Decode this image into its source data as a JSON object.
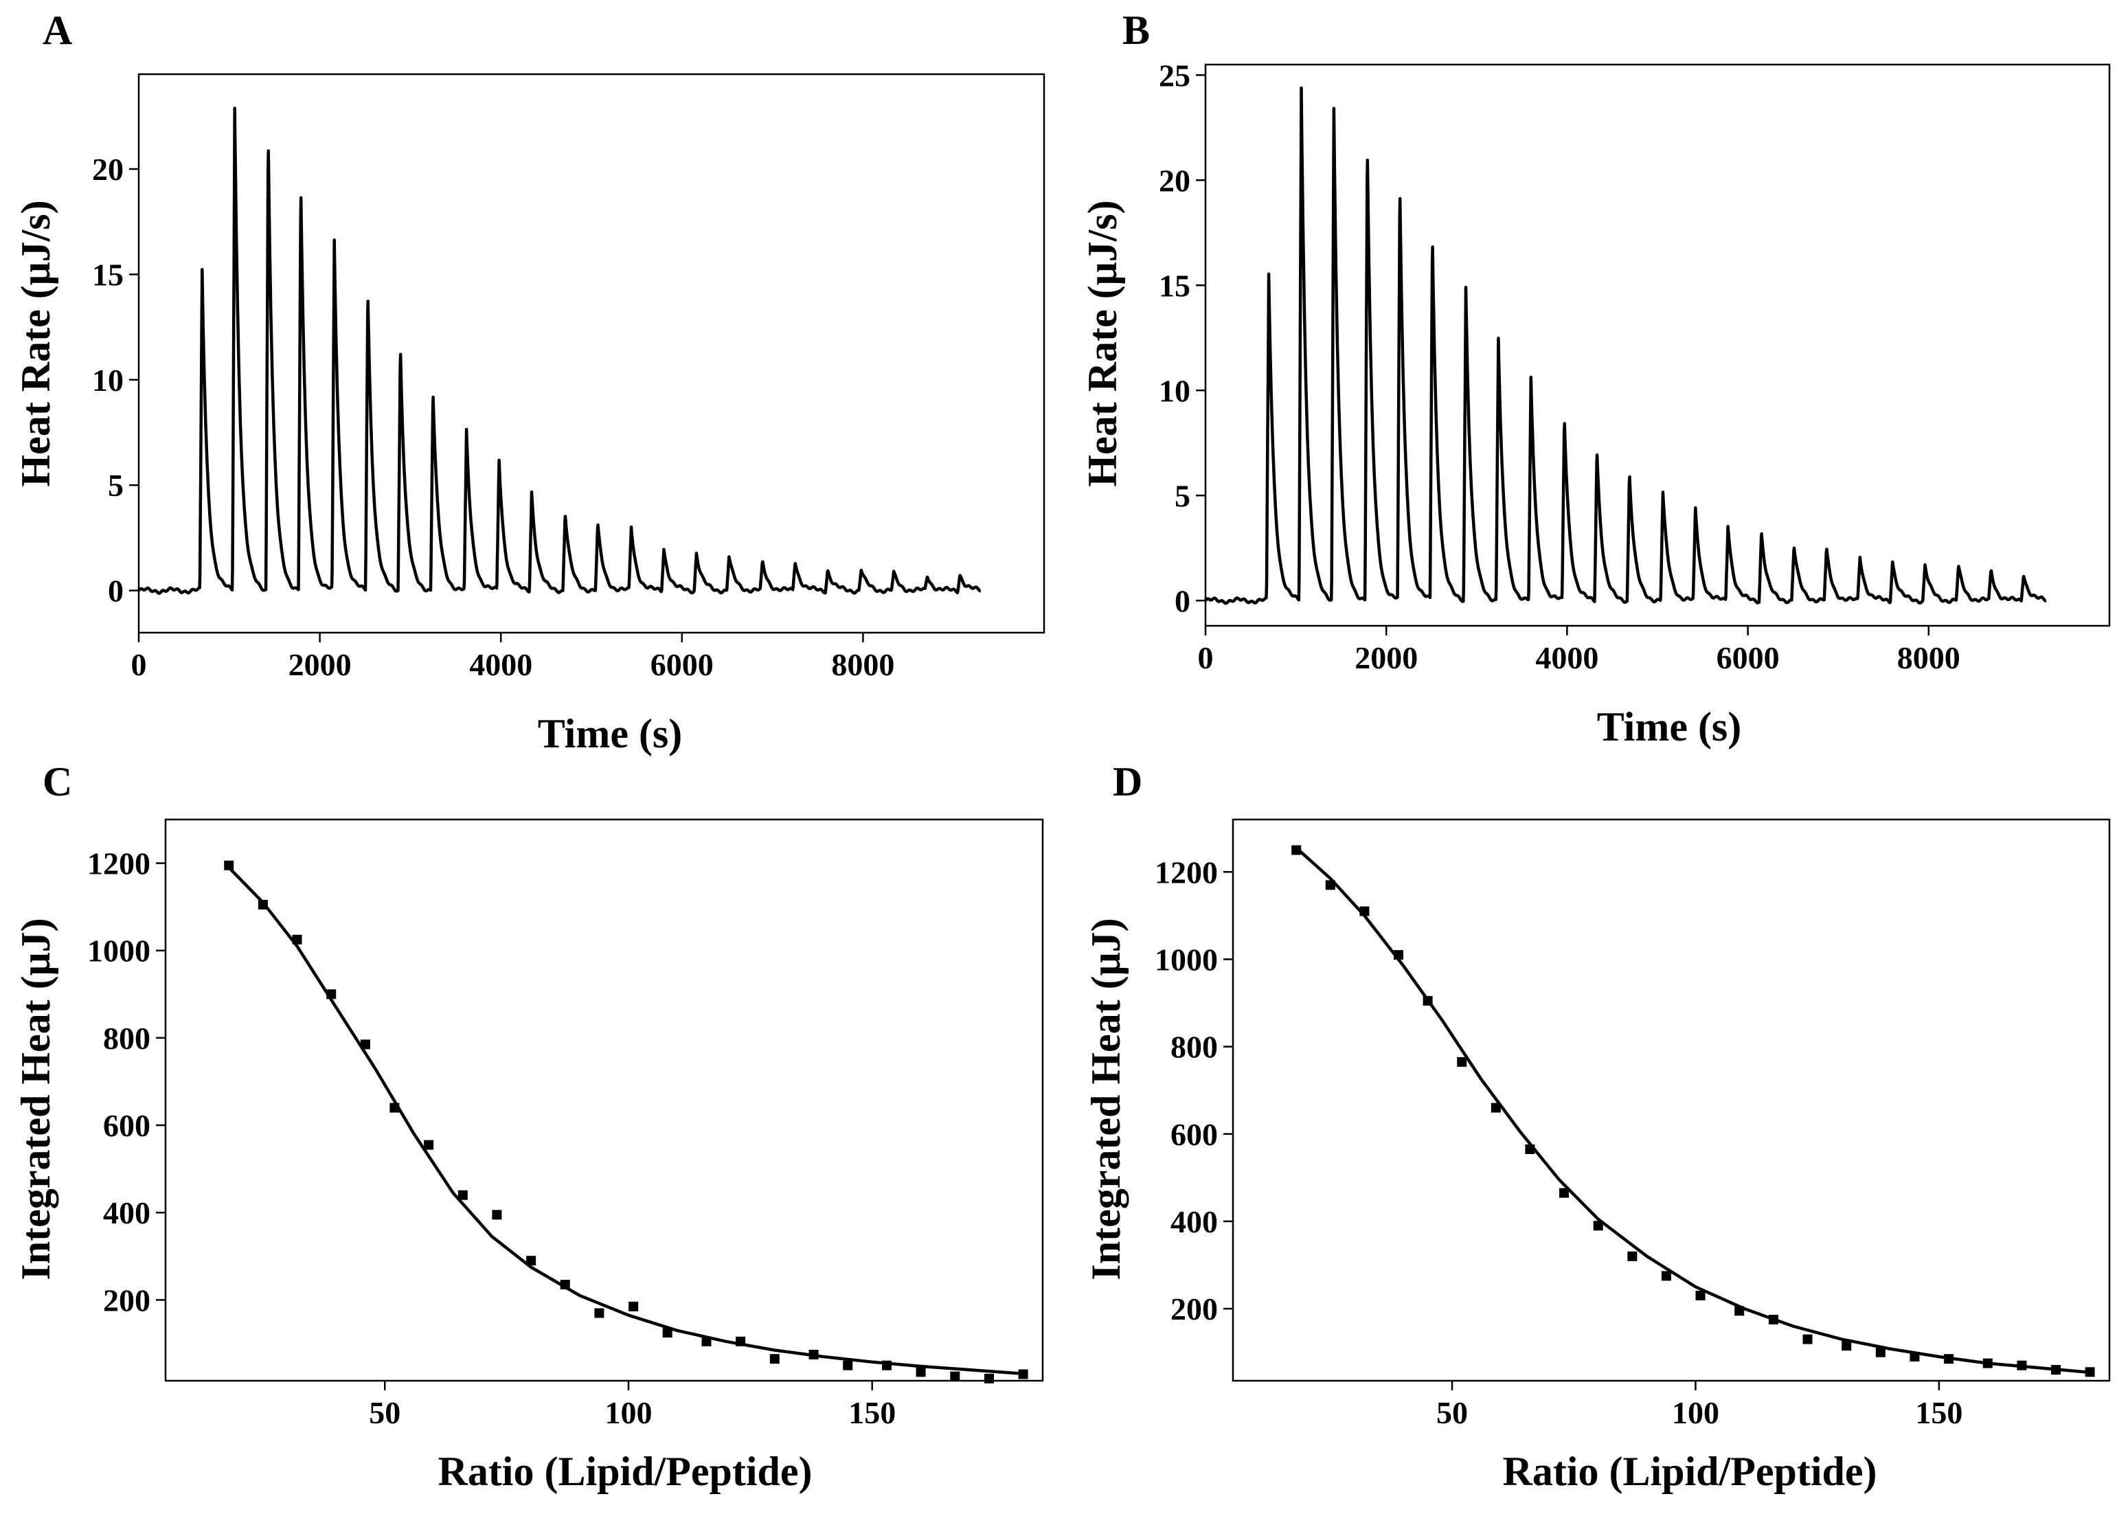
{
  "chart_data": [
    {
      "panel": "A",
      "type": "line",
      "xlabel": "Time (s)",
      "ylabel": "Heat Rate (μJ/s)",
      "xlim": [
        0,
        10000
      ],
      "ylim": [
        -2,
        24.5
      ],
      "xticks": [
        0,
        2000,
        4000,
        6000,
        8000
      ],
      "yticks": [
        0,
        5,
        10,
        15,
        20
      ],
      "baseline_end_s": 9300,
      "injections": [
        {
          "t": 700,
          "peak": 15.2
        },
        {
          "t": 1060,
          "peak": 22.9
        },
        {
          "t": 1430,
          "peak": 21.6
        },
        {
          "t": 1790,
          "peak": 19.2
        },
        {
          "t": 2160,
          "peak": 16.5
        },
        {
          "t": 2530,
          "peak": 14.2
        },
        {
          "t": 2890,
          "peak": 11.6
        },
        {
          "t": 3250,
          "peak": 9.5
        },
        {
          "t": 3620,
          "peak": 7.5
        },
        {
          "t": 3980,
          "peak": 6.2
        },
        {
          "t": 4340,
          "peak": 4.7
        },
        {
          "t": 4710,
          "peak": 3.7
        },
        {
          "t": 5070,
          "peak": 3.1
        },
        {
          "t": 5440,
          "peak": 3.0
        },
        {
          "t": 5800,
          "peak": 2.0
        },
        {
          "t": 6160,
          "peak": 1.8
        },
        {
          "t": 6520,
          "peak": 1.6
        },
        {
          "t": 6890,
          "peak": 1.3
        },
        {
          "t": 7250,
          "peak": 1.4
        },
        {
          "t": 7610,
          "peak": 1.0
        },
        {
          "t": 7980,
          "peak": 1.0
        },
        {
          "t": 8340,
          "peak": 0.8
        },
        {
          "t": 8710,
          "peak": 0.7
        },
        {
          "t": 9070,
          "peak": 0.8
        }
      ]
    },
    {
      "panel": "B",
      "type": "line",
      "xlabel": "Time (s)",
      "ylabel": "Heat Rate (μJ/s)",
      "xlim": [
        0,
        10000
      ],
      "ylim": [
        -1.2,
        25.5
      ],
      "xticks": [
        0,
        2000,
        4000,
        6000,
        8000
      ],
      "yticks": [
        0,
        5,
        10,
        15,
        20,
        25
      ],
      "baseline_end_s": 9300,
      "injections": [
        {
          "t": 700,
          "peak": 15.5
        },
        {
          "t": 1060,
          "peak": 24.4
        },
        {
          "t": 1420,
          "peak": 23.4
        },
        {
          "t": 1790,
          "peak": 21.6
        },
        {
          "t": 2150,
          "peak": 19.6
        },
        {
          "t": 2510,
          "peak": 17.4
        },
        {
          "t": 2880,
          "peak": 14.9
        },
        {
          "t": 3240,
          "peak": 12.5
        },
        {
          "t": 3600,
          "peak": 10.5
        },
        {
          "t": 3970,
          "peak": 8.7
        },
        {
          "t": 4330,
          "peak": 7.2
        },
        {
          "t": 4690,
          "peak": 6.1
        },
        {
          "t": 5060,
          "peak": 5.1
        },
        {
          "t": 5420,
          "peak": 4.3
        },
        {
          "t": 5780,
          "peak": 3.6
        },
        {
          "t": 6150,
          "peak": 3.3
        },
        {
          "t": 6510,
          "peak": 2.6
        },
        {
          "t": 6870,
          "peak": 2.4
        },
        {
          "t": 7240,
          "peak": 2.1
        },
        {
          "t": 7600,
          "peak": 1.9
        },
        {
          "t": 7960,
          "peak": 1.7
        },
        {
          "t": 8330,
          "peak": 1.6
        },
        {
          "t": 8690,
          "peak": 1.4
        },
        {
          "t": 9050,
          "peak": 1.3
        }
      ]
    },
    {
      "panel": "C",
      "type": "scatter",
      "xlabel": "Ratio (Lipid/Peptide)",
      "ylabel": "Integrated Heat (μJ)",
      "xlim": [
        5,
        185
      ],
      "ylim": [
        15,
        1300
      ],
      "xticks": [
        50,
        100,
        150
      ],
      "yticks": [
        200,
        400,
        600,
        800,
        1000,
        1200
      ],
      "points": {
        "x": [
          18,
          25,
          32,
          39,
          46,
          52,
          59,
          66,
          73,
          80,
          87,
          94,
          101,
          108,
          116,
          123,
          130,
          138,
          145,
          153,
          160,
          167,
          174,
          181
        ],
        "y": [
          1195,
          1105,
          1025,
          900,
          785,
          640,
          555,
          440,
          395,
          290,
          235,
          170,
          185,
          125,
          105,
          105,
          65,
          75,
          50,
          50,
          35,
          25,
          20,
          30
        ]
      },
      "fit": {
        "x": [
          18,
          25,
          32,
          40,
          48,
          56,
          64,
          72,
          80,
          90,
          100,
          110,
          120,
          130,
          140,
          150,
          160,
          170,
          180
        ],
        "y": [
          1190,
          1110,
          1010,
          870,
          730,
          580,
          445,
          345,
          275,
          210,
          165,
          130,
          105,
          85,
          70,
          58,
          48,
          40,
          32
        ]
      }
    },
    {
      "panel": "D",
      "type": "scatter",
      "xlabel": "Ratio (Lipid/Peptide)",
      "ylabel": "Integrated Heat (μJ)",
      "xlim": [
        5,
        185
      ],
      "ylim": [
        35,
        1320
      ],
      "xticks": [
        50,
        100,
        150
      ],
      "yticks": [
        200,
        400,
        600,
        800,
        1000,
        1200
      ],
      "points": {
        "x": [
          18,
          25,
          32,
          39,
          45,
          52,
          59,
          66,
          73,
          80,
          87,
          94,
          101,
          109,
          116,
          123,
          131,
          138,
          145,
          152,
          160,
          167,
          174,
          181
        ],
        "y": [
          1250,
          1170,
          1110,
          1010,
          905,
          765,
          660,
          565,
          465,
          390,
          320,
          275,
          230,
          195,
          175,
          130,
          115,
          100,
          90,
          85,
          75,
          70,
          60,
          55
        ]
      },
      "fit": {
        "x": [
          18,
          25,
          32,
          40,
          48,
          56,
          64,
          72,
          80,
          90,
          100,
          110,
          120,
          130,
          140,
          150,
          160,
          170,
          180
        ],
        "y": [
          1255,
          1185,
          1100,
          985,
          860,
          725,
          605,
          495,
          405,
          320,
          250,
          200,
          160,
          130,
          108,
          90,
          75,
          65,
          55
        ]
      }
    }
  ]
}
